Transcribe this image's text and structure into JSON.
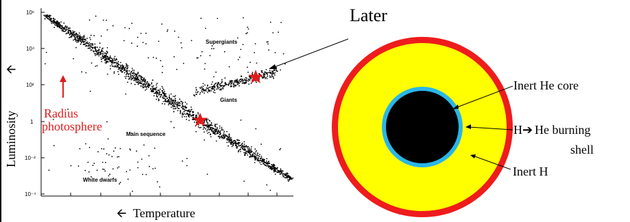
{
  "hr_diagram": {
    "y_axis_title": "Luminosity",
    "y_axis_arrow": "🡩",
    "x_axis_arrow": "🡨",
    "x_axis_title": "Temperature",
    "tick_labels": {
      "y1": "10⁶",
      "y2": "10⁴",
      "y3": "10²",
      "y4": "1",
      "y5": "10⁻²",
      "y6": "10⁻⁴"
    },
    "regions": {
      "supergiants": "Supergiants",
      "giants": "Giants",
      "main_sequence": "Main sequence",
      "white_dwarfs": "White dwarfs"
    },
    "radius_label_line1": "Radius",
    "radius_label_line2": "photosphere"
  },
  "star_structure": {
    "later_label": "Later",
    "inert_he_core": "Inert He core",
    "burning_shell_part1": "H",
    "burning_shell_arrow": "➔",
    "burning_shell_part2": "He burning",
    "burning_shell_line2": "shell",
    "inert_h": "Inert H"
  },
  "colors": {
    "outer_ring": "#ee1c1c",
    "envelope": "#ffff00",
    "shell": "#29b6e8",
    "core": "#000000",
    "star_marker": "#e11b1b",
    "radius_text": "#e11b1b"
  }
}
